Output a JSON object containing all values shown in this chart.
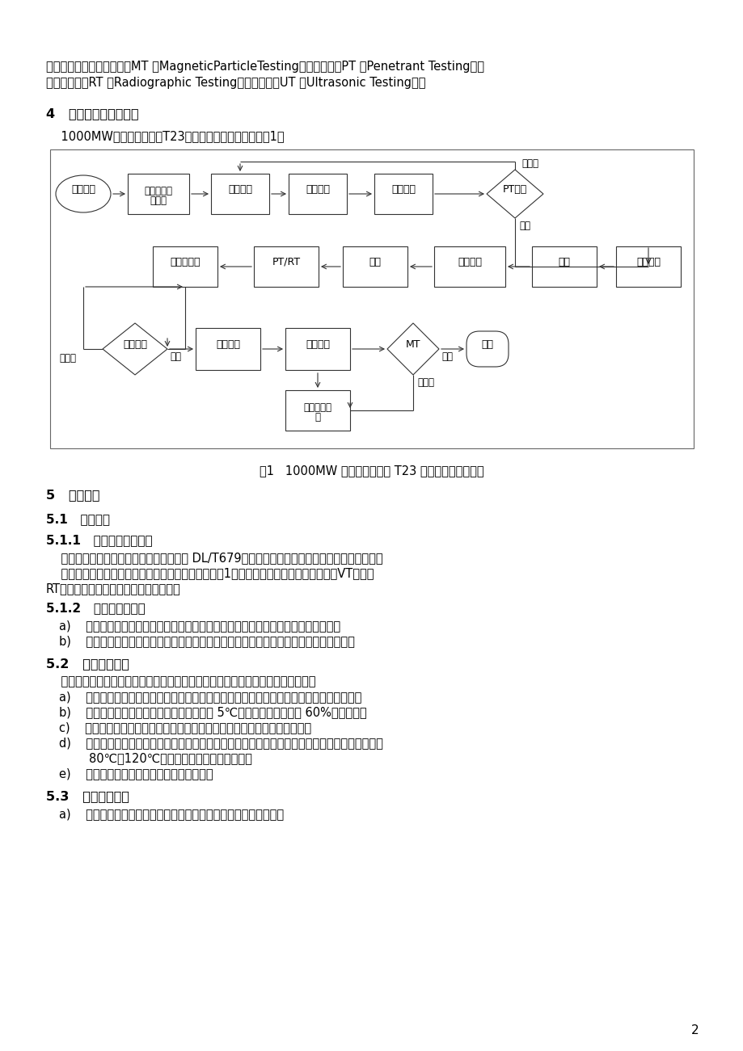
{
  "bg_color": "#ffffff",
  "text_color": "#000000",
  "page_number": "2",
  "top_text_line1": "无损检测方法有：磁粉检验MT （MagneticParticleTesting）；渗透检验PT （Penetrant Testing）；",
  "top_text_line2": "射线照相检验RT （Radiographic Testing）；超声检测UT （Ultrasonic Testing）。",
  "section4_title": "4   水冷壁更换作业流程",
  "section4_intro": "    1000MW机组锅炉过渡段T23水冷壁管更换作业流程见图1。",
  "flowchart_caption": "图1   1000MW 机组锅炉过渡段 T23 水冷壁检修作业流程",
  "section5_title": "5   施工准备",
  "section51_title": "5.1   人员准备",
  "section511_title": "5.1.1   焊工与焊接操作工",
  "section511_text1": "    从事焊接工作的焊工和焊机操作工应按照 DL/T679的规定参加焊工技术考核，并取得相应资格。",
  "section511_text2": "    焊工考试：每个焊工需按照正式焊接要求，焊接至少1个与水冷壁同材质管段焊缝，焊后VT检查、",
  "section511_text3": "RT探伤，合格后方可执行现场焊接操作。",
  "section512_title": "5.1.2   焊接热处理人员",
  "section512_a": "a)    焊接热处理操作人员应具备初中以上文化程度，经专门培训考核并取得合格证书。",
  "section512_b": "b)    焊接热处理技术人员，应具备中专及以上文化程度，经专门培训考核并取得合格证书。",
  "section52_title": "5.2   焊接材料准备",
  "section52_intro": "    焊前应检查焊接材料的质量证明文件，并抽检焊接材料的外观，合格后方可使用。",
  "section52_a": "a)    焊条供货应及时，到达现场时要严格检查材质证明书及出厂日期，合格后方可进入库存；",
  "section52_b": "b)    焊条应存放在干燥、通风良好、温度大于 5℃且相对空气湿度小于 60%的库房内；",
  "section52_c": "c)    所有焊接材料必须有生产厂家提供的质量合格证、焊接材料质量证明书；",
  "section52_d": "d)    焊条在使用前应按照说明书的要求进行烘焙，重复烘焙不得超过两次；使用时应装入保温温度为",
  "section52_d2": "        80℃～120℃的专用保温筒内，随用随取；",
  "section52_e": "e)    焊条的领用严格按照焊材领用制度进行。",
  "section53_title": "5.3   施工现场准备",
  "section53_a": "a)    施工现场的电焊机集中布置，提供充足可靠的动力电源和照明；"
}
